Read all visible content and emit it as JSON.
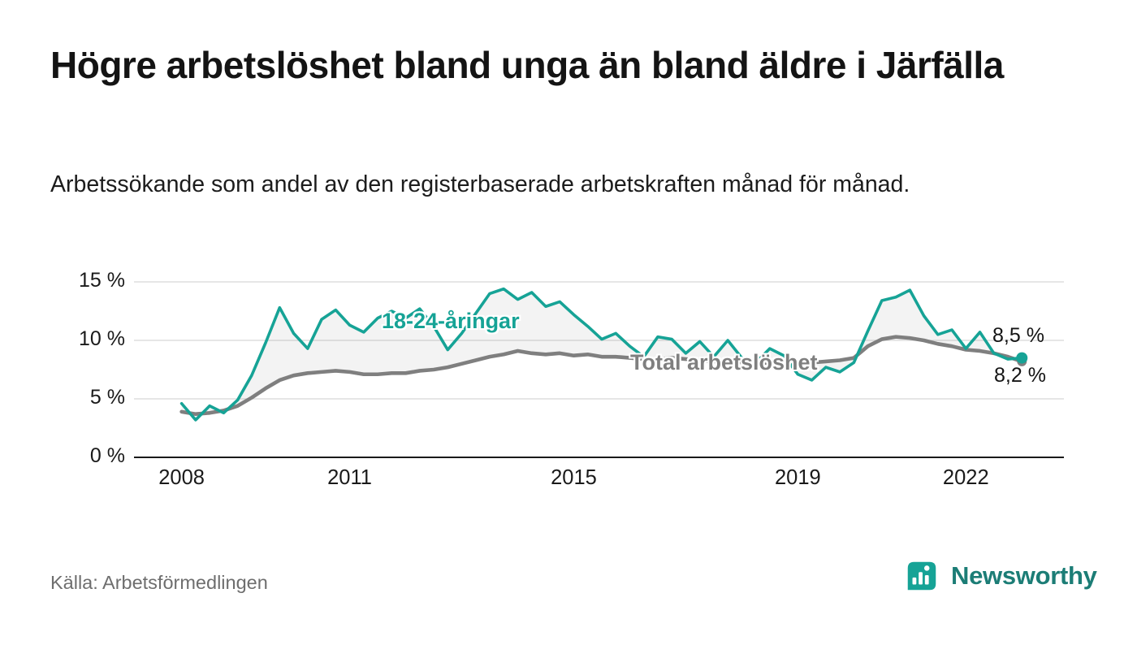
{
  "header": {
    "title": "Högre arbetslöshet bland unga än bland äldre i Järfälla",
    "subtitle": "Arbetssökande som andel av den registerbaserade arbetskraften månad för månad."
  },
  "footer": {
    "source": "Källa: Arbetsförmedlingen",
    "brand": "Newsworthy"
  },
  "colors": {
    "accent_teal": "#16a396",
    "line_gray": "#7f7f7f",
    "brand_text": "#1c7d76",
    "grid": "#d8d8d8",
    "axis": "#1a1a1a"
  },
  "chart_data": {
    "type": "line",
    "title": "Högre arbetslöshet bland unga än bland äldre i Järfälla",
    "subtitle": "Arbetssökande som andel av den registerbaserade arbetskraften månad för månad.",
    "xlabel": "",
    "ylabel": "",
    "grid": "horizontal",
    "legend_position": "inline-labels",
    "x_domain": [
      2007.15,
      2023.75
    ],
    "ylim": [
      0,
      15
    ],
    "x_ticks": [
      2008,
      2011,
      2015,
      2019,
      2022
    ],
    "y_ticks": [
      0,
      5,
      10,
      15
    ],
    "y_tick_labels": [
      "0 %",
      "5 %",
      "10 %",
      "15 %"
    ],
    "x": [
      2008,
      2008.25,
      2008.5,
      2008.75,
      2009,
      2009.25,
      2009.5,
      2009.75,
      2010,
      2010.25,
      2010.5,
      2010.75,
      2011,
      2011.25,
      2011.5,
      2011.75,
      2012,
      2012.25,
      2012.5,
      2012.75,
      2013,
      2013.25,
      2013.5,
      2013.75,
      2014,
      2014.25,
      2014.5,
      2014.75,
      2015,
      2015.25,
      2015.5,
      2015.75,
      2016,
      2016.25,
      2016.5,
      2016.75,
      2017,
      2017.25,
      2017.5,
      2017.75,
      2018,
      2018.25,
      2018.5,
      2018.75,
      2019,
      2019.25,
      2019.5,
      2019.75,
      2020,
      2020.25,
      2020.5,
      2020.75,
      2021,
      2021.25,
      2021.5,
      2021.75,
      2022,
      2022.25,
      2022.5,
      2022.75,
      2023
    ],
    "series": [
      {
        "name": "18-24-åringar",
        "color": "#16a396",
        "end_label": "8,5 %",
        "values": [
          4.6,
          3.2,
          4.4,
          3.8,
          4.9,
          7.0,
          9.8,
          12.8,
          10.6,
          9.3,
          11.8,
          12.6,
          11.3,
          10.7,
          11.9,
          12.5,
          11.9,
          12.7,
          11.2,
          9.2,
          10.6,
          12.3,
          14.0,
          14.4,
          13.5,
          14.1,
          12.9,
          13.3,
          12.2,
          11.2,
          10.1,
          10.6,
          9.5,
          8.6,
          10.3,
          10.1,
          8.9,
          9.9,
          8.6,
          10.0,
          8.5,
          8.1,
          9.3,
          8.7,
          7.1,
          6.6,
          7.7,
          7.3,
          8.1,
          10.8,
          13.4,
          13.7,
          14.3,
          12.1,
          10.5,
          10.9,
          9.3,
          10.7,
          8.9,
          8.4,
          8.5
        ]
      },
      {
        "name": "Total arbetslöshet",
        "color": "#7f7f7f",
        "end_label": "8,2 %",
        "values": [
          3.9,
          3.7,
          3.8,
          4.0,
          4.4,
          5.1,
          5.9,
          6.6,
          7.0,
          7.2,
          7.3,
          7.4,
          7.3,
          7.1,
          7.1,
          7.2,
          7.2,
          7.4,
          7.5,
          7.7,
          8.0,
          8.3,
          8.6,
          8.8,
          9.1,
          8.9,
          8.8,
          8.9,
          8.7,
          8.8,
          8.6,
          8.6,
          8.5,
          8.4,
          8.4,
          8.5,
          8.4,
          8.3,
          8.2,
          8.3,
          8.1,
          8.0,
          8.1,
          8.1,
          8.0,
          8.1,
          8.2,
          8.3,
          8.5,
          9.5,
          10.1,
          10.3,
          10.2,
          10.0,
          9.7,
          9.5,
          9.2,
          9.1,
          8.9,
          8.6,
          8.2
        ]
      }
    ]
  }
}
